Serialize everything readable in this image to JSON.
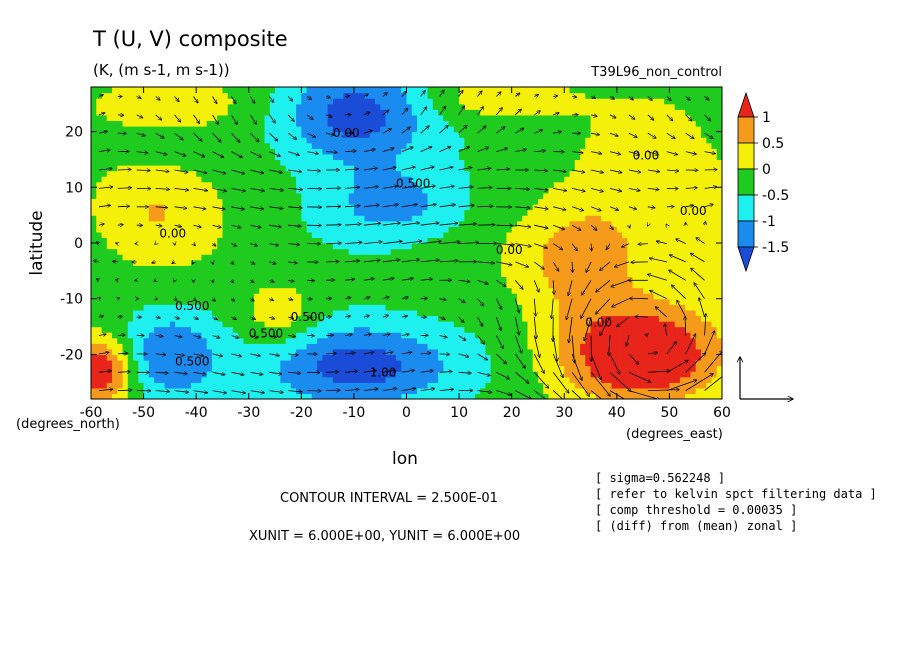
{
  "chart_data": {
    "type": "heatmap",
    "title": "T (U, V) composite",
    "subtitle": "(K, (m s-1, m s-1))",
    "run_label": "T39L96_non_control",
    "xlabel": "lon",
    "ylabel": "latitude",
    "x_unit_label": "(degrees_east)",
    "y_unit_label": "(degrees_north)",
    "x_ticks": [
      "-60",
      "-50",
      "-40",
      "-30",
      "-20",
      "-10",
      "0",
      "10",
      "20",
      "30",
      "40",
      "50",
      "60"
    ],
    "y_ticks": [
      "20",
      "10",
      "0",
      "-10",
      "-20"
    ],
    "xlim": [
      -60,
      60
    ],
    "ylim": [
      -28,
      28
    ],
    "colorbar": {
      "labels": [
        "1",
        "0.5",
        "0",
        "-0.5",
        "-1",
        "-1.5"
      ],
      "levels": [
        1.5,
        1.0,
        0.5,
        0.0,
        -0.5,
        -1.0,
        -1.5,
        -2.0
      ],
      "colors": [
        "#e8251b",
        "#f59a1a",
        "#f5f00a",
        "#1ecb1e",
        "#1ef0f0",
        "#1a8cf0",
        "#1a4cd8"
      ]
    },
    "contour_labels": [
      "0.00",
      "0.500",
      "0.00",
      "0.500",
      "0.00",
      "0.00",
      "1.00",
      "0.500",
      "0.500",
      "0.00",
      "0.500",
      "0.00"
    ],
    "field_blobs": [
      {
        "lon": -44,
        "lat": 25,
        "rx": 14,
        "ry": 5,
        "amp": 0.7
      },
      {
        "lon": -10,
        "lat": 23,
        "rx": 14,
        "ry": 9,
        "amp": -1.6
      },
      {
        "lon": 17,
        "lat": 26,
        "rx": 13,
        "ry": 4,
        "amp": 0.7
      },
      {
        "lon": -2,
        "lat": 7,
        "rx": 14,
        "ry": 7,
        "amp": -0.9
      },
      {
        "lon": 33,
        "lat": -3,
        "rx": 11,
        "ry": 10,
        "amp": 1.0
      },
      {
        "lon": 45,
        "lat": -20,
        "rx": 16,
        "ry": 9,
        "amp": 1.9
      },
      {
        "lon": -58,
        "lat": -23,
        "rx": 6,
        "ry": 6,
        "amp": 1.7
      },
      {
        "lon": -45,
        "lat": -20,
        "rx": 9,
        "ry": 8,
        "amp": -1.1
      },
      {
        "lon": -10,
        "lat": -22,
        "rx": 18,
        "ry": 8,
        "amp": -1.6
      },
      {
        "lon": -24,
        "lat": -13,
        "rx": 7,
        "ry": 6,
        "amp": 0.7
      },
      {
        "lon": -48,
        "lat": 6,
        "rx": 12,
        "ry": 9,
        "amp": 0.7
      },
      {
        "lon": 48,
        "lat": 8,
        "rx": 16,
        "ry": 16,
        "amp": 0.55
      }
    ],
    "vector_reference": {
      "x_unit": 6.0,
      "y_unit": 6.0
    },
    "contour_interval": 0.25
  },
  "footer": {
    "contour_interval": "CONTOUR INTERVAL = 2.500E-01",
    "units": "XUNIT = 6.000E+00, YUNIT = 6.000E+00"
  },
  "notes": [
    "[ sigma=0.562248 ]",
    "[ refer to kelvin spct filtering data ]",
    "[ comp threshold = 0.00035 ]",
    "[ (diff) from (mean) zonal ]"
  ]
}
